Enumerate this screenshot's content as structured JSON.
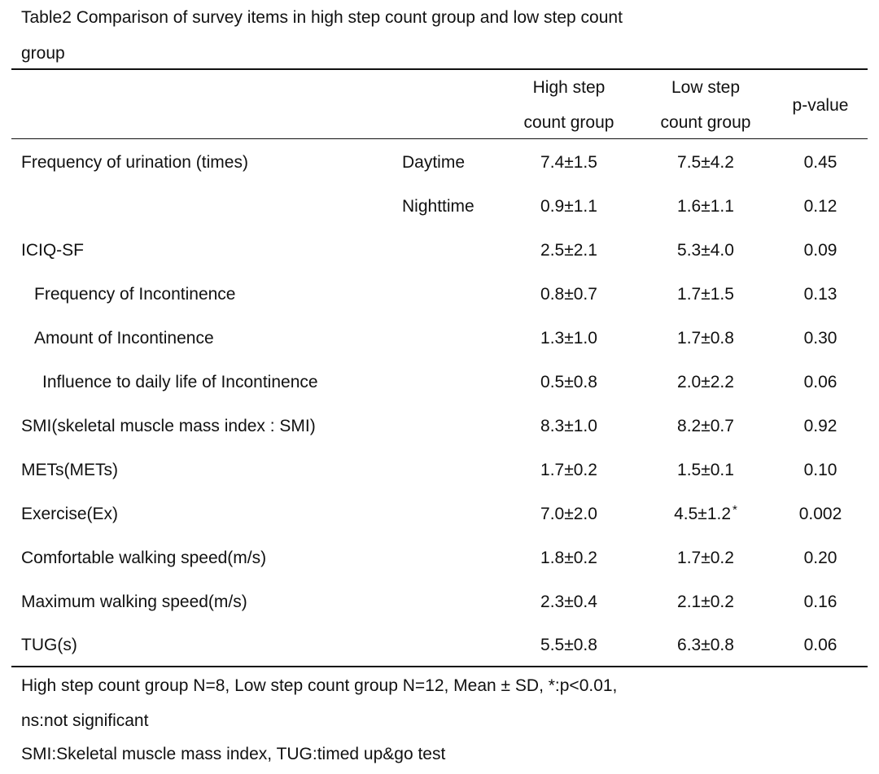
{
  "title": {
    "line1": "Table2  Comparison of survey items in high step count group and low step count",
    "line2": "group"
  },
  "headers": {
    "high_line1": "High step",
    "high_line2": "count group",
    "low_line1": "Low step",
    "low_line2": "count group",
    "pvalue": "p-value"
  },
  "rows": [
    {
      "label": "Frequency of urination (times)",
      "sub": "Daytime",
      "high": "7.4±1.5",
      "low": "7.5±4.2",
      "p": "0.45"
    },
    {
      "label": "",
      "sub": "Nighttime",
      "high": "0.9±1.1",
      "low": "1.6±1.1",
      "p": "0.12"
    },
    {
      "label": "ICIQ-SF",
      "sub": "",
      "high": "2.5±2.1",
      "low": "5.3±4.0",
      "p": "0.09"
    },
    {
      "label": "Frequency of Incontinence",
      "sub": "",
      "high": "0.8±0.7",
      "low": "1.7±1.5",
      "p": "0.13"
    },
    {
      "label": "Amount of Incontinence",
      "sub": "",
      "high": "1.3±1.0",
      "low": "1.7±0.8",
      "p": "0.30"
    },
    {
      "label": "Influence to daily life of Incontinence",
      "sub": "",
      "high": "0.5±0.8",
      "low": "2.0±2.2",
      "p": "0.06"
    },
    {
      "label": "SMI(skeletal muscle mass index : SMI)",
      "sub": "",
      "high": "8.3±1.0",
      "low": "8.2±0.7",
      "p": "0.92"
    },
    {
      "label": "METs(METs)",
      "sub": "",
      "high": "1.7±0.2",
      "low": "1.5±0.1",
      "p": "0.10"
    },
    {
      "label": "Exercise(Ex)",
      "sub": "",
      "high": "7.0±2.0",
      "low": "4.5±1.2",
      "low_mark": "*",
      "p": "0.002"
    },
    {
      "label": "Comfortable walking speed(m/s)",
      "sub": "",
      "high": "1.8±0.2",
      "low": "1.7±0.2",
      "p": "0.20"
    },
    {
      "label": "Maximum walking speed(m/s)",
      "sub": "",
      "high": "2.3±0.4",
      "low": "2.1±0.2",
      "p": "0.16"
    },
    {
      "label": "TUG(s)",
      "sub": "",
      "high": "5.5±0.8",
      "low": "6.3±0.8",
      "p": "0.06"
    }
  ],
  "notes": {
    "line1": "High step count group N=8,   Low step count group N=12,   Mean  ±  SD,  *:p<0.01,",
    "line2": "ns:not significant",
    "line3": "SMI:Skeletal muscle mass index,  TUG:timed up&go test"
  }
}
